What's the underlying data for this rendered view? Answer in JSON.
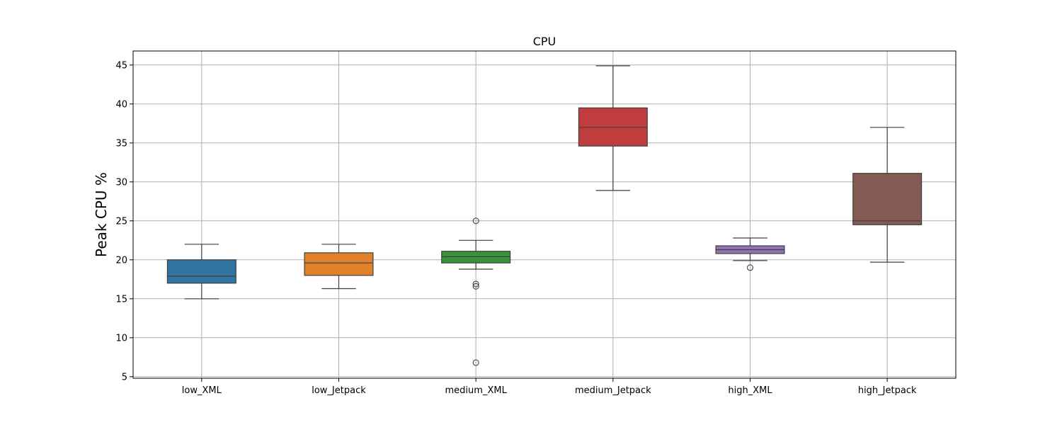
{
  "chart_data": {
    "type": "box",
    "title": "CPU",
    "xlabel": "",
    "ylabel": "Peak CPU %",
    "ylim": [
      4.8,
      46.8
    ],
    "yticks": [
      5,
      10,
      15,
      20,
      25,
      30,
      35,
      40,
      45
    ],
    "grid": true,
    "legend": "none",
    "categories": [
      "low_XML",
      "low_Jetpack",
      "medium_XML",
      "medium_Jetpack",
      "high_XML",
      "high_Jetpack"
    ],
    "boxes": [
      {
        "category": "low_XML",
        "whisker_low": 15.0,
        "q1": 17.0,
        "median": 17.9,
        "q3": 20.0,
        "whisker_high": 22.0,
        "outliers": [],
        "color": "#3274a1"
      },
      {
        "category": "low_Jetpack",
        "whisker_low": 16.3,
        "q1": 18.0,
        "median": 19.6,
        "q3": 20.9,
        "whisker_high": 22.0,
        "outliers": [],
        "color": "#e1812c"
      },
      {
        "category": "medium_XML",
        "whisker_low": 18.8,
        "q1": 19.6,
        "median": 20.4,
        "q3": 21.1,
        "whisker_high": 22.5,
        "outliers": [
          25.0,
          16.9,
          16.6,
          6.8
        ],
        "color": "#3a923a"
      },
      {
        "category": "medium_Jetpack",
        "whisker_low": 28.9,
        "q1": 34.6,
        "median": 37.0,
        "q3": 39.5,
        "whisker_high": 44.9,
        "outliers": [],
        "color": "#c03d3e"
      },
      {
        "category": "high_XML",
        "whisker_low": 19.9,
        "q1": 20.8,
        "median": 21.3,
        "q3": 21.8,
        "whisker_high": 22.8,
        "outliers": [
          19.0
        ],
        "color": "#9372b2"
      },
      {
        "category": "high_Jetpack",
        "whisker_low": 19.7,
        "q1": 24.5,
        "median": 25.0,
        "q3": 31.1,
        "whisker_high": 37.0,
        "outliers": [],
        "color": "#845b53"
      }
    ]
  }
}
